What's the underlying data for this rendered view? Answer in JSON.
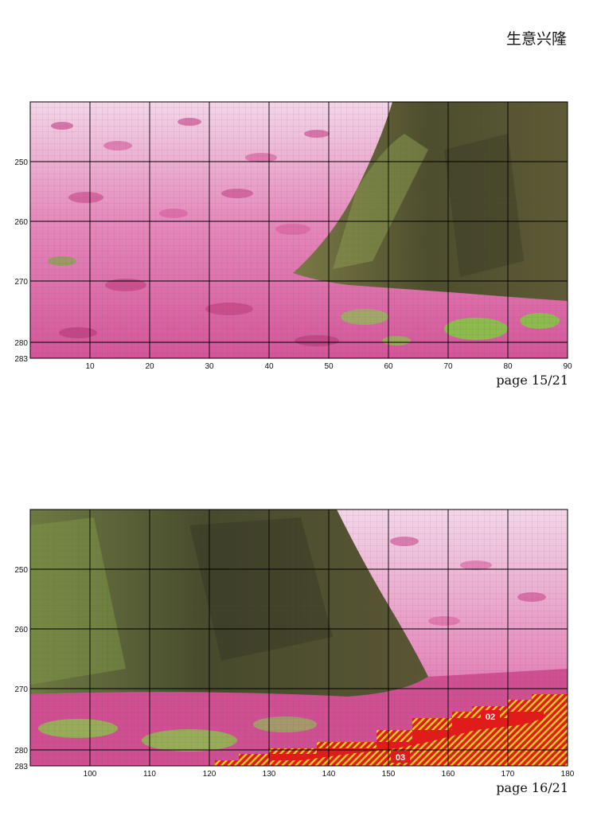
{
  "header": {
    "title": "生意兴隆"
  },
  "pages": [
    {
      "page_label": "page 15/21",
      "x_ticks": [
        "10",
        "20",
        "30",
        "40",
        "50",
        "60",
        "70",
        "80",
        "90"
      ],
      "y_ticks": [
        "250",
        "260",
        "270",
        "280",
        "283"
      ],
      "markers": []
    },
    {
      "page_label": "page 16/21",
      "x_ticks": [
        "100",
        "110",
        "120",
        "130",
        "140",
        "150",
        "160",
        "170",
        "180"
      ],
      "y_ticks": [
        "250",
        "260",
        "270",
        "280",
        "283"
      ],
      "markers": [
        "02",
        "03"
      ]
    }
  ],
  "colors": {
    "petal_pink": "#d9589b",
    "light_pink": "#f1c8e0",
    "trunk_dark": "#4a4a2c",
    "moss_green": "#7f9a45",
    "grass_green": "#8dbb4e",
    "marker_red": "#e21a1a",
    "marker_yellow": "#f4d21c"
  }
}
